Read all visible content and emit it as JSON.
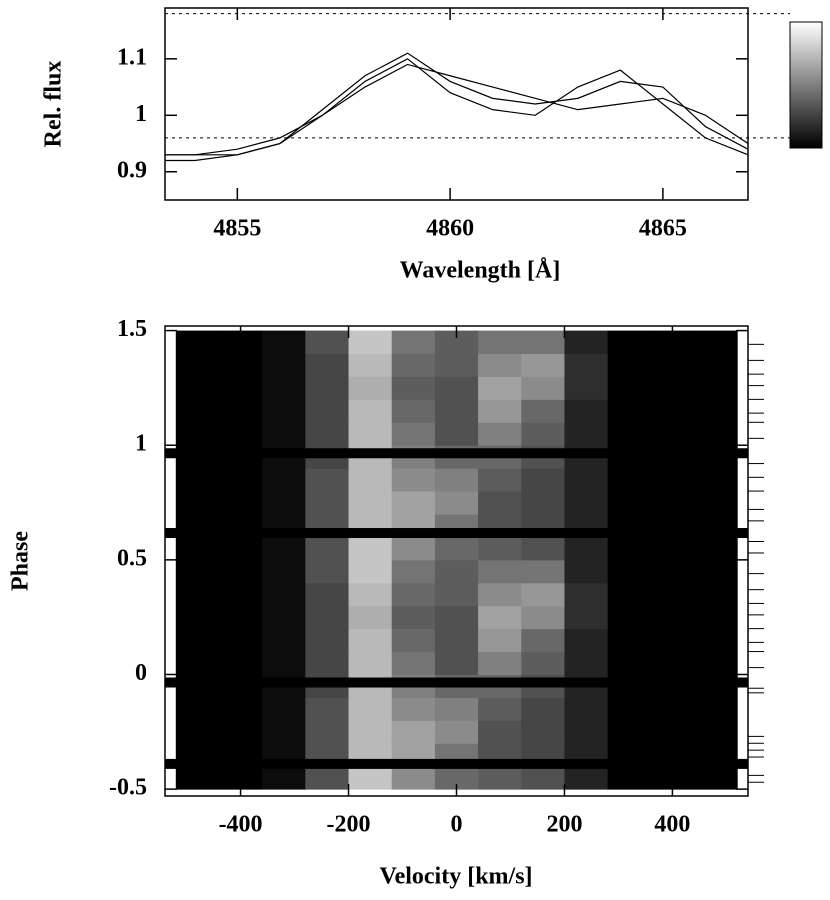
{
  "chart_data": [
    {
      "type": "line",
      "xlabel": "Wavelength [Å]",
      "ylabel": "Rel. flux",
      "xlim": [
        4853.3,
        4867.0
      ],
      "ylim": [
        0.85,
        1.19
      ],
      "xticks": [
        4855,
        4860,
        4865
      ],
      "yticks": [
        0.9,
        1,
        1.1
      ],
      "reference_lines": [
        0.96,
        1.18
      ],
      "colorbar": {
        "min": 0.96,
        "max": 1.18
      },
      "x": [
        4853,
        4854,
        4855,
        4856,
        4857,
        4858,
        4859,
        4860,
        4861,
        4862,
        4863,
        4864,
        4865,
        4866,
        4867
      ],
      "series": [
        {
          "color": "#000000",
          "values": [
            0.93,
            0.93,
            0.93,
            0.95,
            1.0,
            1.06,
            1.1,
            1.04,
            1.01,
            1.0,
            1.05,
            1.08,
            1.02,
            0.96,
            0.93
          ]
        },
        {
          "color": "#000000",
          "values": [
            0.92,
            0.92,
            0.93,
            0.95,
            1.01,
            1.07,
            1.11,
            1.06,
            1.03,
            1.02,
            1.03,
            1.06,
            1.05,
            0.98,
            0.94
          ]
        },
        {
          "color": "#000000",
          "values": [
            0.93,
            0.93,
            0.94,
            0.96,
            1.0,
            1.05,
            1.09,
            1.07,
            1.05,
            1.03,
            1.01,
            1.02,
            1.03,
            1.0,
            0.95
          ]
        }
      ]
    },
    {
      "type": "heatmap",
      "xlabel": "Velocity [km/s]",
      "ylabel": "Phase",
      "xlim": [
        -540,
        540
      ],
      "ylim": [
        -0.53,
        1.52
      ],
      "xticks": [
        -400,
        -200,
        0,
        200,
        400
      ],
      "yticks": [
        -0.5,
        0,
        0.5,
        1,
        1.5
      ],
      "x": [
        -480,
        -400,
        -320,
        -240,
        -160,
        -80,
        0,
        80,
        160,
        240,
        320,
        400,
        480
      ],
      "y": [
        -0.45,
        -0.35,
        -0.25,
        -0.15,
        -0.05,
        0.05,
        0.15,
        0.25,
        0.35,
        0.45,
        0.55,
        0.65,
        0.75,
        0.85,
        0.95,
        1.05,
        1.15,
        1.25,
        1.35,
        1.45
      ],
      "z": [
        [
          0.93,
          0.94,
          0.97,
          1.03,
          1.13,
          1.08,
          1.05,
          1.04,
          1.03,
          0.99,
          0.96,
          0.94,
          0.93
        ],
        [
          0.93,
          0.94,
          0.97,
          1.03,
          1.12,
          1.1,
          1.06,
          1.03,
          1.02,
          0.99,
          0.96,
          0.94,
          0.93
        ],
        [
          0.92,
          0.93,
          0.97,
          1.03,
          1.12,
          1.1,
          1.08,
          1.03,
          1.02,
          0.99,
          0.96,
          0.94,
          0.93
        ],
        [
          0.93,
          0.94,
          0.97,
          1.03,
          1.12,
          1.08,
          1.07,
          1.04,
          1.02,
          0.99,
          0.96,
          0.94,
          0.93
        ],
        [
          0.93,
          0.94,
          0.97,
          1.02,
          1.12,
          1.07,
          1.05,
          1.05,
          1.03,
          0.99,
          0.96,
          0.94,
          0.93
        ],
        [
          0.93,
          0.94,
          0.97,
          1.02,
          1.12,
          1.06,
          1.03,
          1.07,
          1.04,
          0.99,
          0.96,
          0.94,
          0.93
        ],
        [
          0.93,
          0.94,
          0.97,
          1.02,
          1.12,
          1.05,
          1.03,
          1.09,
          1.05,
          0.99,
          0.96,
          0.94,
          0.93
        ],
        [
          0.93,
          0.94,
          0.97,
          1.02,
          1.11,
          1.04,
          1.03,
          1.1,
          1.08,
          1.0,
          0.96,
          0.94,
          0.93
        ],
        [
          0.92,
          0.94,
          0.97,
          1.02,
          1.12,
          1.05,
          1.04,
          1.08,
          1.09,
          1.0,
          0.96,
          0.94,
          0.93
        ],
        [
          0.93,
          0.94,
          0.97,
          1.03,
          1.13,
          1.06,
          1.04,
          1.06,
          1.06,
          0.99,
          0.96,
          0.94,
          0.93
        ],
        [
          0.93,
          0.94,
          0.97,
          1.03,
          1.13,
          1.08,
          1.05,
          1.04,
          1.03,
          0.99,
          0.96,
          0.94,
          0.93
        ],
        [
          0.93,
          0.94,
          0.97,
          1.03,
          1.12,
          1.1,
          1.06,
          1.03,
          1.02,
          0.99,
          0.96,
          0.94,
          0.93
        ],
        [
          0.92,
          0.93,
          0.97,
          1.03,
          1.12,
          1.1,
          1.08,
          1.03,
          1.02,
          0.99,
          0.96,
          0.94,
          0.93
        ],
        [
          0.93,
          0.94,
          0.97,
          1.03,
          1.12,
          1.08,
          1.07,
          1.04,
          1.02,
          0.99,
          0.96,
          0.94,
          0.93
        ],
        [
          0.93,
          0.94,
          0.97,
          1.02,
          1.12,
          1.07,
          1.05,
          1.05,
          1.03,
          0.99,
          0.96,
          0.94,
          0.93
        ],
        [
          0.93,
          0.94,
          0.97,
          1.02,
          1.12,
          1.06,
          1.03,
          1.07,
          1.04,
          0.99,
          0.96,
          0.94,
          0.93
        ],
        [
          0.93,
          0.94,
          0.97,
          1.02,
          1.12,
          1.05,
          1.03,
          1.09,
          1.05,
          0.99,
          0.96,
          0.94,
          0.93
        ],
        [
          0.93,
          0.94,
          0.97,
          1.02,
          1.11,
          1.04,
          1.03,
          1.1,
          1.08,
          1.0,
          0.96,
          0.94,
          0.93
        ],
        [
          0.92,
          0.94,
          0.97,
          1.02,
          1.12,
          1.05,
          1.04,
          1.08,
          1.09,
          1.0,
          0.96,
          0.94,
          0.93
        ],
        [
          0.93,
          0.94,
          0.97,
          1.03,
          1.13,
          1.06,
          1.04,
          1.06,
          1.06,
          0.99,
          0.96,
          0.94,
          0.93
        ]
      ],
      "gap_phases": [
        -0.39,
        -0.035,
        0.617,
        0.965
      ],
      "gap_color": "#000000",
      "observed_phases": [
        -0.47,
        -0.44,
        -0.36,
        -0.33,
        -0.3,
        -0.27,
        -0.08,
        -0.06,
        0.03,
        0.1,
        0.14,
        0.2,
        0.26,
        0.31,
        0.37,
        0.44,
        0.53,
        0.58,
        0.67,
        0.72,
        0.8,
        0.86,
        0.92,
        1.03,
        1.1,
        1.14,
        1.2,
        1.26,
        1.31,
        1.37,
        1.44
      ]
    }
  ]
}
